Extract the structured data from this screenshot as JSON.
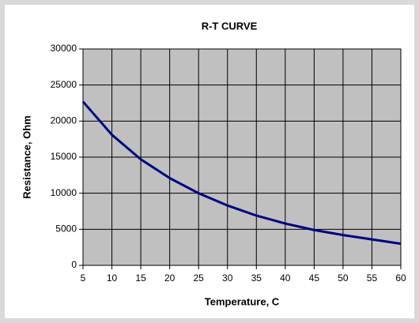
{
  "chart_data": {
    "type": "line",
    "title": "R-T CURVE",
    "x_label": "Temperature, C",
    "y_label": "Resistance, Ohm",
    "x": [
      5,
      10,
      15,
      20,
      25,
      30,
      35,
      40,
      45,
      50,
      55,
      60
    ],
    "values": [
      22700,
      18100,
      14700,
      12100,
      10000,
      8300,
      6900,
      5800,
      4900,
      4200,
      3600,
      3000
    ],
    "color": "#000080",
    "xlim": [
      5,
      60
    ],
    "xticks": [
      5,
      10,
      15,
      20,
      25,
      30,
      35,
      40,
      45,
      50,
      55,
      60
    ],
    "ylim": [
      0,
      30000
    ],
    "yticks": [
      0,
      5000,
      10000,
      15000,
      20000,
      25000,
      30000
    ],
    "grid": true
  }
}
